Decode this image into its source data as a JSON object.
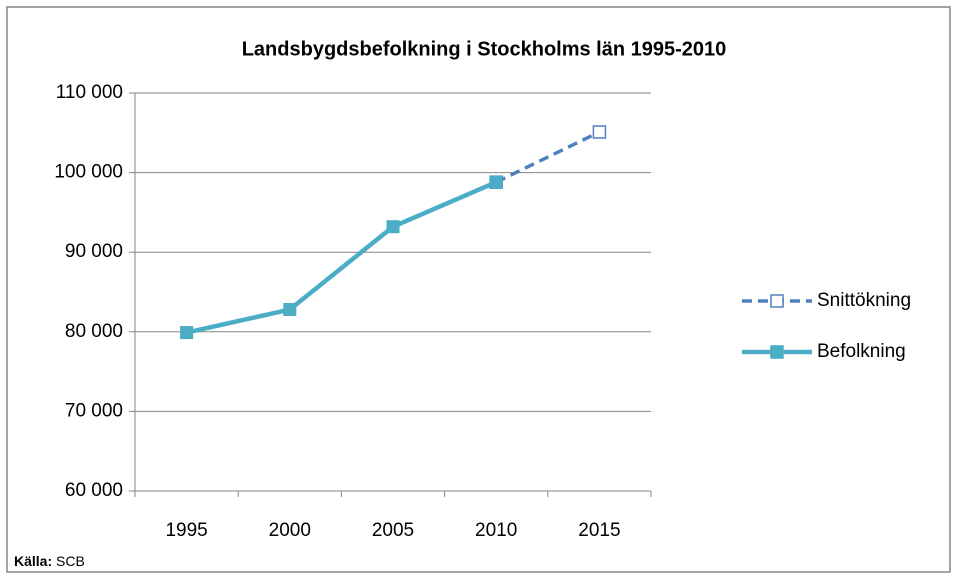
{
  "chart_data": {
    "type": "line",
    "title": "Landsbygdsbefolkning i Stockholms län 1995-2010",
    "categories": [
      "1995",
      "2000",
      "2005",
      "2010",
      "2015"
    ],
    "series": [
      {
        "name": "Snittökning",
        "color": "#4f81bd",
        "dashed": true,
        "marker": "hollow-square",
        "values": [
          null,
          null,
          null,
          98800,
          105100
        ]
      },
      {
        "name": "Befolkning",
        "color": "#4bacc6",
        "dashed": false,
        "marker": "square",
        "values": [
          79900,
          82800,
          93200,
          98800,
          null
        ]
      }
    ],
    "ylim": [
      60000,
      110000
    ],
    "yticks": [
      {
        "value": 60000,
        "label": "60 000"
      },
      {
        "value": 70000,
        "label": "70 000"
      },
      {
        "value": 80000,
        "label": "80 000"
      },
      {
        "value": 90000,
        "label": "90 000"
      },
      {
        "value": 100000,
        "label": "100 000"
      },
      {
        "value": 110000,
        "label": "110 000"
      }
    ],
    "grid": true,
    "legend": "right",
    "source": {
      "label": "Källa:",
      "text": "SCB"
    }
  }
}
